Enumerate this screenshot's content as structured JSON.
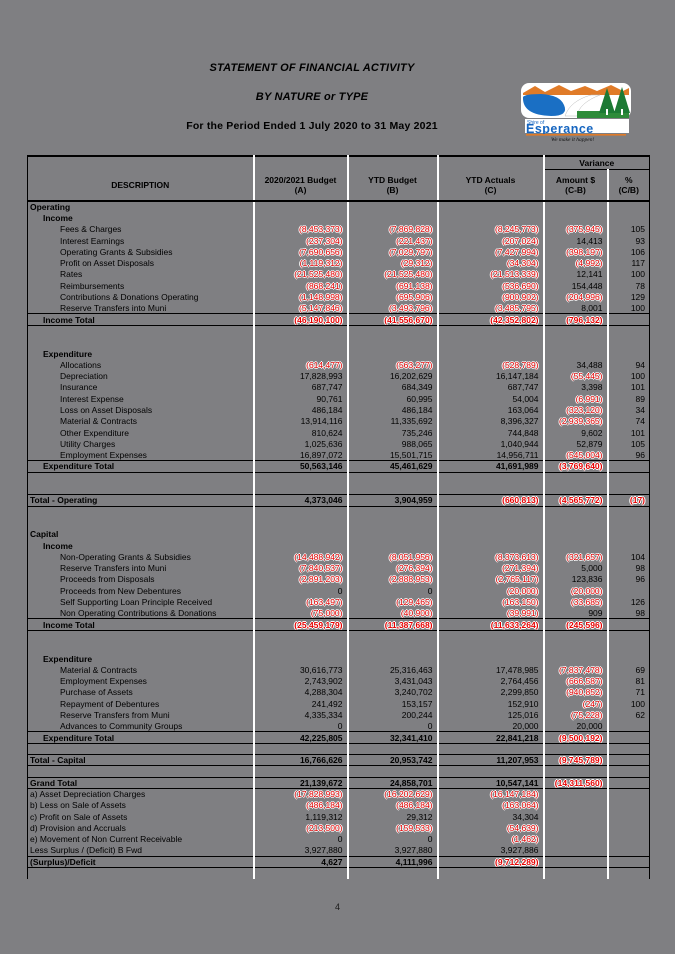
{
  "title": {
    "line1": "STATEMENT OF FINANCIAL ACTIVITY",
    "line2": "BY NATURE or TYPE",
    "line3": "For the Period Ended 1 July 2020 to 31 May 2021"
  },
  "logo": {
    "shire_label": "Shire of",
    "name": "Esperance",
    "tagline": "We make it happen!",
    "brand_blue": "#1565c0",
    "brand_orange": "#e07b28",
    "brand_green": "#1c7a34"
  },
  "colors": {
    "page_background": "#7f7f82",
    "negative_number": "#e60000",
    "text": "#000000"
  },
  "table": {
    "variance_label": "Variance",
    "columns": [
      {
        "label": "DESCRIPTION",
        "sub": ""
      },
      {
        "label": "2020/2021 Budget",
        "sub": "(A)"
      },
      {
        "label": "YTD Budget",
        "sub": "(B)"
      },
      {
        "label": "YTD Actuals",
        "sub": "(C)"
      },
      {
        "label": "Amount $",
        "sub": "(C-B)"
      },
      {
        "label": "%",
        "sub": "(C/B)"
      }
    ],
    "rows": [
      {
        "s": "sec",
        "label": "Operating"
      },
      {
        "s": "sub",
        "label": "Income"
      },
      {
        "s": "item",
        "label": "Fees & Charges",
        "a": "(8,453,373)",
        "b": "(7,869,828)",
        "c": "(8,245,773)",
        "v": "(375,945)",
        "p": "105"
      },
      {
        "s": "item",
        "label": "Interest Earnings",
        "a": "(237,304)",
        "b": "(221,437)",
        "c": "(207,024)",
        "v": "14,413",
        "p": "93"
      },
      {
        "s": "item",
        "label": "Operating Grants & Subsidies",
        "a": "(7,690,656)",
        "b": "(7,029,797)",
        "c": "(7,427,994)",
        "v": "(398,197)",
        "p": "106"
      },
      {
        "s": "item",
        "label": "Profit on Asset Disposals",
        "a": "(1,119,312)",
        "b": "(29,312)",
        "c": "(34,304)",
        "v": "(4,992)",
        "p": "117"
      },
      {
        "s": "item",
        "label": "Rates",
        "a": "(21,525,480)",
        "b": "(21,525,480)",
        "c": "(21,513,339)",
        "v": "12,141",
        "p": "100"
      },
      {
        "s": "item",
        "label": "Reimbursements",
        "a": "(868,241)",
        "b": "(691,138)",
        "c": "(536,690)",
        "v": "154,448",
        "p": "78"
      },
      {
        "s": "item",
        "label": "Contributions & Donations Operating",
        "a": "(1,148,998)",
        "b": "(695,906)",
        "c": "(900,902)",
        "v": "(204,996)",
        "p": "129"
      },
      {
        "s": "item",
        "label": "Reserve Transfers into Muni",
        "a": "(5,147,846)",
        "b": "(3,493,796)",
        "c": "(3,485,795)",
        "v": "8,001",
        "p": "100"
      },
      {
        "s": "tot",
        "label": "Income Total",
        "a": "(46,190,100)",
        "b": "(41,556,670)",
        "c": "(42,352,802)",
        "v": "(796,132)",
        "p": ""
      },
      {
        "s": "blank"
      },
      {
        "s": "blank"
      },
      {
        "s": "sub",
        "label": "Expenditure"
      },
      {
        "s": "item",
        "label": "Allocations",
        "a": "(614,477)",
        "b": "(563,277)",
        "c": "(528,789)",
        "v": "34,488",
        "p": "94"
      },
      {
        "s": "item",
        "label": "Depreciation",
        "a": "17,828,993",
        "b": "16,202,629",
        "c": "16,147,184",
        "v": "(55,445)",
        "p": "100"
      },
      {
        "s": "item",
        "label": "Insurance",
        "a": "687,747",
        "b": "684,349",
        "c": "687,747",
        "v": "3,398",
        "p": "101"
      },
      {
        "s": "item",
        "label": "Interest Expense",
        "a": "90,761",
        "b": "60,995",
        "c": "54,004",
        "v": "(6,991)",
        "p": "89"
      },
      {
        "s": "item",
        "label": "Loss on Asset Disposals",
        "a": "486,184",
        "b": "486,184",
        "c": "163,064",
        "v": "(323,120)",
        "p": "34"
      },
      {
        "s": "item",
        "label": "Material & Contracts",
        "a": "13,914,116",
        "b": "11,335,692",
        "c": "8,396,327",
        "v": "(2,939,365)",
        "p": "74"
      },
      {
        "s": "item",
        "label": "Other Expenditure",
        "a": "810,624",
        "b": "735,246",
        "c": "744,848",
        "v": "9,602",
        "p": "101"
      },
      {
        "s": "item",
        "label": "Utility Charges",
        "a": "1,025,636",
        "b": "988,065",
        "c": "1,040,944",
        "v": "52,879",
        "p": "105"
      },
      {
        "s": "item",
        "label": "Employment Expenses",
        "a": "16,897,072",
        "b": "15,501,715",
        "c": "14,956,711",
        "v": "(545,004)",
        "p": "96"
      },
      {
        "s": "tot",
        "label": "Expenditure Total",
        "a": "50,563,146",
        "b": "45,461,629",
        "c": "41,691,989",
        "v": "(3,769,640)",
        "p": ""
      },
      {
        "s": "blank"
      },
      {
        "s": "blank"
      },
      {
        "s": "gt",
        "label": "Total - Operating",
        "a": "4,373,046",
        "b": "3,904,959",
        "c": "(660,813)",
        "v": "(4,565,772)",
        "p": "(17)"
      },
      {
        "s": "blank"
      },
      {
        "s": "blank"
      },
      {
        "s": "sec",
        "label": "Capital"
      },
      {
        "s": "sub",
        "label": "Income"
      },
      {
        "s": "item",
        "label": "Non-Operating Grants & Subsidies",
        "a": "(14,488,942)",
        "b": "(8,051,956)",
        "c": "(8,373,613)",
        "v": "(321,657)",
        "p": "104"
      },
      {
        "s": "item",
        "label": "Reserve Transfers into Muni",
        "a": "(7,840,537)",
        "b": "(276,394)",
        "c": "(271,394)",
        "v": "5,000",
        "p": "98"
      },
      {
        "s": "item",
        "label": "Proceeds from Disposals",
        "a": "(2,891,203)",
        "b": "(2,888,953)",
        "c": "(2,765,117)",
        "v": "123,836",
        "p": "96"
      },
      {
        "s": "item",
        "label": "Proceeds from New Debentures",
        "a": "0",
        "b": "0",
        "c": "(20,000)",
        "v": "(20,000)",
        "p": ""
      },
      {
        "s": "item",
        "label": "Self Supporting Loan Principle Received",
        "a": "(163,497)",
        "b": "(129,465)",
        "c": "(163,150)",
        "v": "(33,685)",
        "p": "126"
      },
      {
        "s": "item",
        "label": "Non Operating Contributions & Donations",
        "a": "(75,000)",
        "b": "(40,900)",
        "c": "(39,991)",
        "v": "909",
        "p": "98"
      },
      {
        "s": "tot",
        "label": "Income Total",
        "a": "(25,459,179)",
        "b": "(11,387,668)",
        "c": "(11,633,264)",
        "v": "(245,596)",
        "p": ""
      },
      {
        "s": "blank"
      },
      {
        "s": "blank"
      },
      {
        "s": "sub",
        "label": "Expenditure"
      },
      {
        "s": "item",
        "label": "Material & Contracts",
        "a": "30,616,773",
        "b": "25,316,463",
        "c": "17,478,985",
        "v": "(7,837,478)",
        "p": "69"
      },
      {
        "s": "item",
        "label": "Employment Expenses",
        "a": "2,743,902",
        "b": "3,431,043",
        "c": "2,764,456",
        "v": "(666,587)",
        "p": "81"
      },
      {
        "s": "item",
        "label": "Purchase of Assets",
        "a": "4,288,304",
        "b": "3,240,702",
        "c": "2,299,850",
        "v": "(940,852)",
        "p": "71"
      },
      {
        "s": "item",
        "label": "Repayment of Debentures",
        "a": "241,492",
        "b": "153,157",
        "c": "152,910",
        "v": "(247)",
        "p": "100"
      },
      {
        "s": "item",
        "label": "Reserve Transfers from Muni",
        "a": "4,335,334",
        "b": "200,244",
        "c": "125,016",
        "v": "(75,228)",
        "p": "62"
      },
      {
        "s": "item",
        "label": "Advances to Community Groups",
        "a": "0",
        "b": "0",
        "c": "20,000",
        "v": "20,000",
        "p": ""
      },
      {
        "s": "tot",
        "label": "Expenditure Total",
        "a": "42,225,805",
        "b": "32,341,410",
        "c": "22,841,218",
        "v": "(9,500,192)",
        "p": ""
      },
      {
        "s": "blank"
      },
      {
        "s": "gt",
        "label": "Total - Capital",
        "a": "16,766,626",
        "b": "20,953,742",
        "c": "11,207,953",
        "v": "(9,745,789)",
        "p": ""
      },
      {
        "s": "blank"
      },
      {
        "s": "gt",
        "label": "Grand Total",
        "a": "21,139,672",
        "b": "24,858,701",
        "c": "10,547,141",
        "v": "(14,311,560)",
        "p": ""
      },
      {
        "s": "adj",
        "label": "a) Asset Depreciation Charges",
        "a": "(17,828,993)",
        "b": "(16,202,629)",
        "c": "(16,147,184)"
      },
      {
        "s": "adj",
        "label": "b) Less on Sale of Assets",
        "a": "(486,184)",
        "b": "(486,184)",
        "c": "(163,064)"
      },
      {
        "s": "adj",
        "label": "c) Profit on Sale of Assets",
        "a": "1,119,312",
        "b": "29,312",
        "c": "34,304"
      },
      {
        "s": "adj",
        "label": "d) Provision and Accruals",
        "a": "(213,500)",
        "b": "(159,533)",
        "c": "(54,639)"
      },
      {
        "s": "adj",
        "label": "e) Movement of Non Current Receivable",
        "a": "0",
        "b": "0",
        "c": "(1,462)"
      },
      {
        "s": "adj",
        "label": "Less Surplus / (Deficit) B Fwd",
        "a": "3,927,880",
        "b": "3,927,880",
        "c": "3,927,886"
      },
      {
        "s": "gt",
        "label": "(Surplus)/Deficit",
        "a": "4,627",
        "b": "4,111,996",
        "c": "(9,712,289)",
        "v": "",
        "p": ""
      },
      {
        "s": "blank"
      }
    ]
  },
  "footer": {
    "page_number": "4"
  }
}
